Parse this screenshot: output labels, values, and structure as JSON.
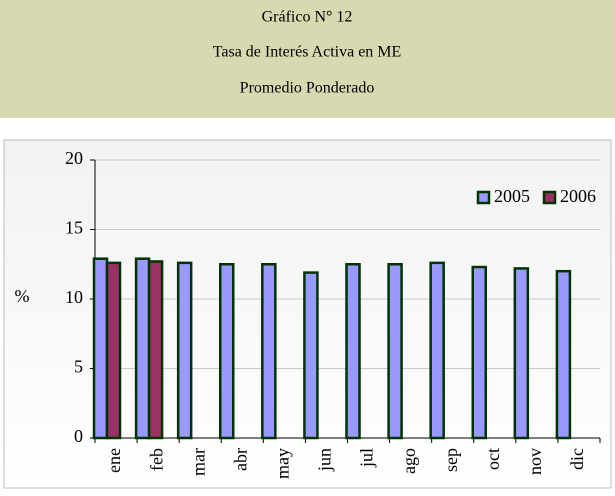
{
  "chart_data": {
    "type": "bar",
    "title": [
      "Gráfico N° 12",
      "Tasa de Interés Activa en ME",
      "Promedio Ponderado"
    ],
    "ylabel": "%",
    "categories": [
      "ene",
      "feb",
      "mar",
      "abr",
      "may",
      "jun",
      "jul",
      "ago",
      "sep",
      "oct",
      "nov",
      "dic"
    ],
    "series": [
      {
        "name": "2005",
        "color": "#9999ff",
        "values": [
          12.9,
          12.9,
          12.6,
          12.5,
          12.5,
          11.9,
          12.5,
          12.5,
          12.6,
          12.3,
          12.2,
          12.0
        ]
      },
      {
        "name": "2006",
        "color": "#993366",
        "values": [
          12.6,
          12.7,
          null,
          null,
          null,
          null,
          null,
          null,
          null,
          null,
          null,
          null
        ]
      }
    ],
    "ylim": [
      0,
      20
    ],
    "yticks": [
      0,
      5,
      10,
      15,
      20
    ],
    "grid": true,
    "legend": "top-right"
  }
}
